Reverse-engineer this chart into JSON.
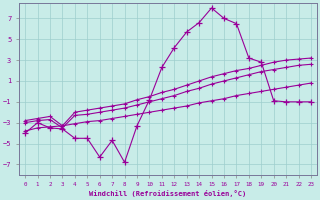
{
  "xlabel": "Windchill (Refroidissement éolien,°C)",
  "background_color": "#c8ece8",
  "line_color": "#990099",
  "xlim": [
    -0.5,
    23.5
  ],
  "ylim": [
    -8,
    8.5
  ],
  "yticks": [
    -7,
    -5,
    -3,
    -1,
    1,
    3,
    5,
    7
  ],
  "xticks": [
    0,
    1,
    2,
    3,
    4,
    5,
    6,
    7,
    8,
    9,
    10,
    11,
    12,
    13,
    14,
    15,
    16,
    17,
    18,
    19,
    20,
    21,
    22,
    23
  ],
  "line1_x": [
    0,
    1,
    2,
    3,
    4,
    5,
    6,
    7,
    8,
    9,
    10,
    11,
    12,
    13,
    14,
    15,
    16,
    17,
    18,
    19,
    20,
    21,
    22,
    23
  ],
  "line1_y": [
    -4.0,
    -3.0,
    -3.5,
    -3.6,
    -4.5,
    -4.5,
    -6.3,
    -4.7,
    -6.8,
    -3.3,
    -0.8,
    2.3,
    4.2,
    5.7,
    6.6,
    8.0,
    7.0,
    6.5,
    3.2,
    2.8,
    -0.9,
    -1.0,
    -1.0,
    -1.0
  ],
  "line2_x": [
    0,
    1,
    2,
    3,
    4,
    5,
    6,
    7,
    8,
    9,
    10,
    11,
    12,
    13,
    14,
    15,
    16,
    17,
    18,
    19,
    20,
    21,
    22,
    23
  ],
  "line2_y": [
    -2.8,
    -2.6,
    -2.4,
    -3.3,
    -2.0,
    -1.8,
    -1.6,
    -1.4,
    -1.2,
    -0.8,
    -0.5,
    -0.1,
    0.2,
    0.6,
    1.0,
    1.4,
    1.7,
    2.0,
    2.2,
    2.5,
    2.8,
    3.0,
    3.1,
    3.2
  ],
  "line3_x": [
    0,
    1,
    2,
    3,
    4,
    5,
    6,
    7,
    8,
    9,
    10,
    11,
    12,
    13,
    14,
    15,
    16,
    17,
    18,
    19,
    20,
    21,
    22,
    23
  ],
  "line3_y": [
    -3.0,
    -2.8,
    -2.7,
    -3.5,
    -2.3,
    -2.2,
    -2.0,
    -1.8,
    -1.6,
    -1.3,
    -1.0,
    -0.7,
    -0.4,
    0.0,
    0.3,
    0.7,
    1.0,
    1.3,
    1.6,
    1.9,
    2.1,
    2.3,
    2.5,
    2.6
  ],
  "line4_x": [
    0,
    1,
    2,
    3,
    4,
    5,
    6,
    7,
    8,
    9,
    10,
    11,
    12,
    13,
    14,
    15,
    16,
    17,
    18,
    19,
    20,
    21,
    22,
    23
  ],
  "line4_y": [
    -3.8,
    -3.5,
    -3.4,
    -3.3,
    -3.1,
    -2.9,
    -2.8,
    -2.6,
    -2.4,
    -2.2,
    -2.0,
    -1.8,
    -1.6,
    -1.4,
    -1.1,
    -0.9,
    -0.7,
    -0.4,
    -0.2,
    0.0,
    0.2,
    0.4,
    0.6,
    0.8
  ]
}
